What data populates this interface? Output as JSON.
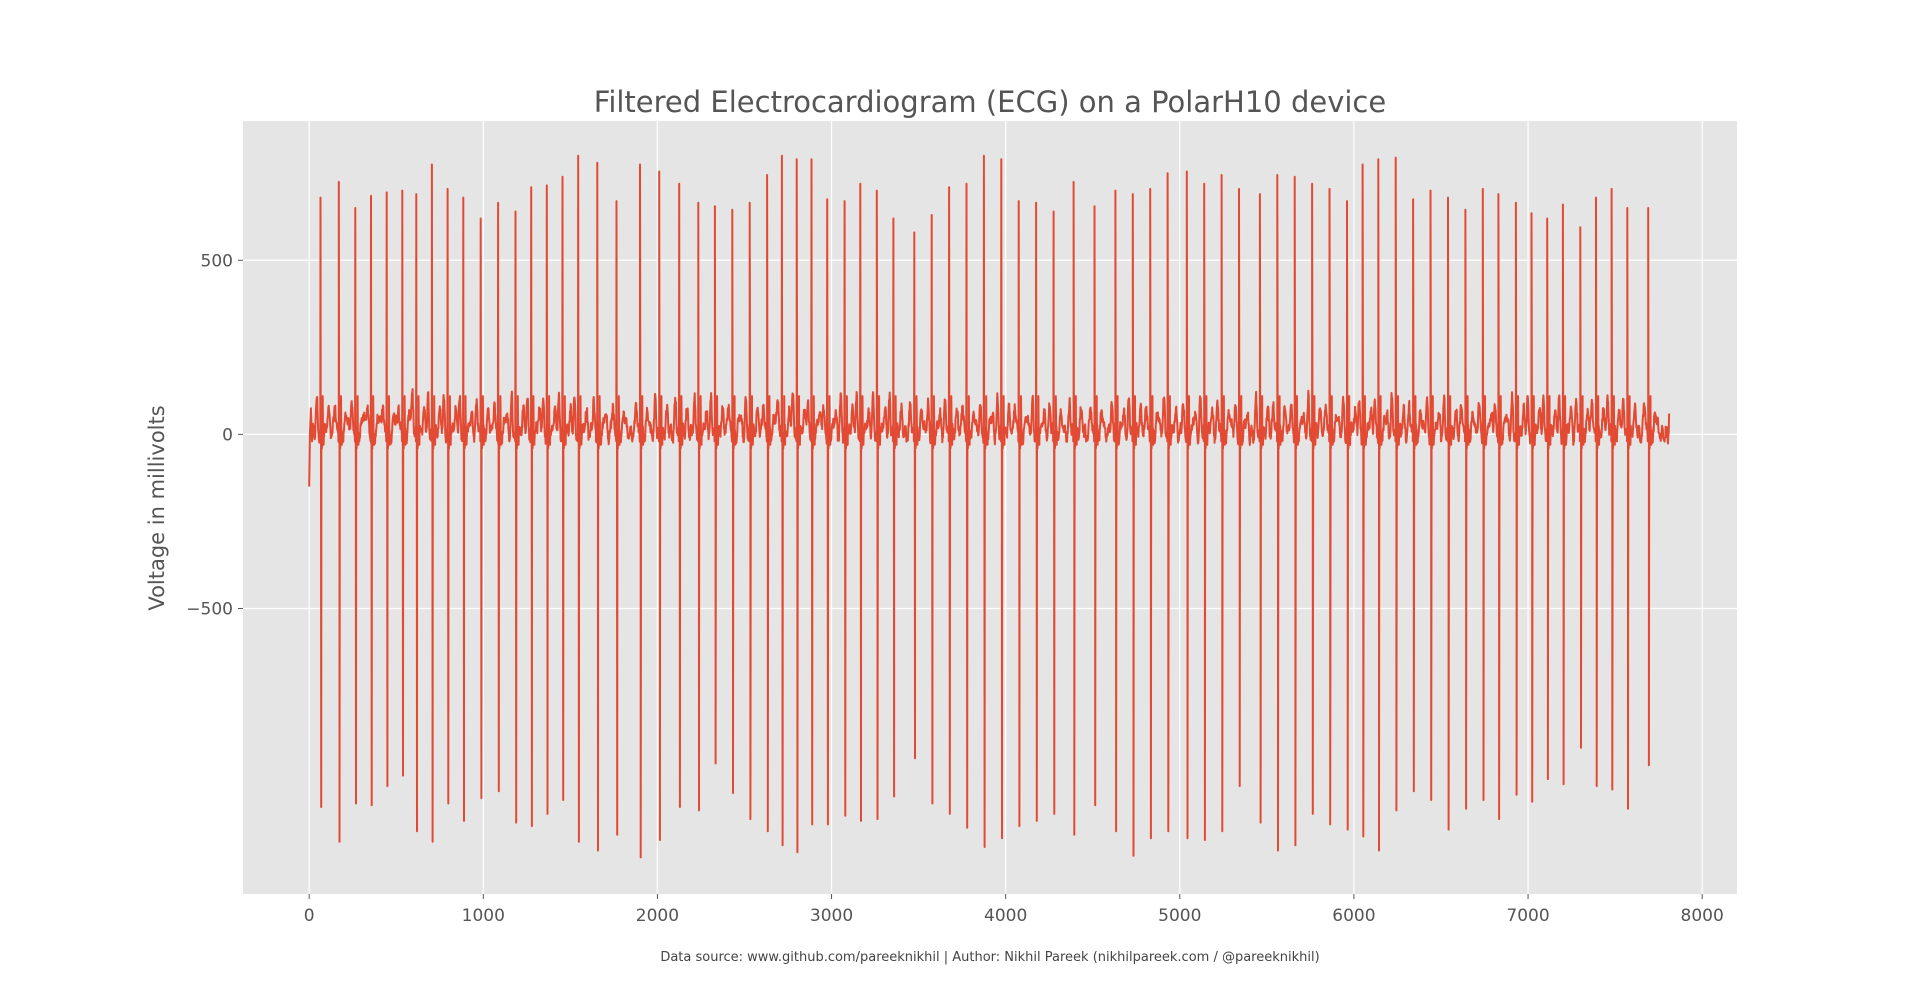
{
  "chart_data": {
    "type": "line",
    "title": "Filtered Electrocardiogram (ECG) on a PolarH10 device",
    "xlabel": "",
    "ylabel": "Voltage in millivolts",
    "caption": "Data source: www.github.com/pareeknikhil | Author: Nikhil Pareek (nikhilpareek.com / @pareeknikhil)",
    "xlim": [
      -380,
      8200
    ],
    "ylim": [
      -1320,
      900
    ],
    "x_ticks": [
      0,
      1000,
      2000,
      3000,
      4000,
      5000,
      6000,
      7000,
      8000
    ],
    "x_tick_labels": [
      "0",
      "1000",
      "2000",
      "3000",
      "4000",
      "5000",
      "6000",
      "7000",
      "8000"
    ],
    "y_ticks": [
      -500,
      0,
      500
    ],
    "y_tick_labels": [
      "−500",
      "0",
      "500"
    ],
    "grid": true,
    "sample_count": 7810,
    "beat_x": [
      65,
      170,
      265,
      355,
      445,
      535,
      615,
      705,
      795,
      885,
      985,
      1085,
      1185,
      1275,
      1365,
      1455,
      1545,
      1655,
      1765,
      1900,
      2010,
      2125,
      2235,
      2330,
      2430,
      2530,
      2630,
      2715,
      2800,
      2885,
      2975,
      3075,
      3165,
      3260,
      3355,
      3475,
      3575,
      3675,
      3775,
      3875,
      3975,
      4075,
      4175,
      4275,
      4390,
      4510,
      4630,
      4730,
      4830,
      4930,
      5040,
      5140,
      5240,
      5340,
      5460,
      5560,
      5660,
      5760,
      5860,
      5960,
      6050,
      6140,
      6240,
      6340,
      6440,
      6540,
      6640,
      6740,
      6830,
      6930,
      7020,
      7110,
      7200,
      7300,
      7390,
      7480,
      7570,
      7690
    ],
    "beat_r": [
      680,
      725,
      650,
      685,
      695,
      700,
      690,
      775,
      705,
      680,
      620,
      665,
      640,
      710,
      715,
      740,
      800,
      780,
      670,
      775,
      755,
      720,
      665,
      655,
      645,
      665,
      745,
      800,
      790,
      790,
      675,
      670,
      720,
      700,
      620,
      580,
      630,
      710,
      720,
      800,
      790,
      670,
      665,
      640,
      725,
      655,
      700,
      690,
      705,
      750,
      755,
      720,
      745,
      705,
      690,
      745,
      740,
      720,
      705,
      670,
      775,
      790,
      795,
      675,
      700,
      680,
      645,
      705,
      690,
      665,
      635,
      620,
      660,
      595,
      680,
      705,
      650,
      650
    ],
    "beat_s": [
      -1070,
      -1170,
      -1060,
      -1065,
      -1010,
      -980,
      -1140,
      -1170,
      -1060,
      -1110,
      -1045,
      -1025,
      -1115,
      -1125,
      -1090,
      -1050,
      -1170,
      -1195,
      -1150,
      -1215,
      -1165,
      -1070,
      -1080,
      -945,
      -1030,
      -1105,
      -1140,
      -1180,
      -1200,
      -1120,
      -1120,
      -1095,
      -1110,
      -1105,
      -1040,
      -930,
      -1060,
      -1090,
      -1130,
      -1185,
      -1160,
      -1125,
      -1110,
      -1090,
      -1150,
      -1065,
      -1140,
      -1210,
      -1160,
      -1140,
      -1160,
      -1165,
      -1140,
      -1010,
      -1115,
      -1195,
      -1180,
      -1090,
      -1120,
      -1135,
      -1155,
      -1195,
      -1080,
      -1025,
      -1050,
      -1135,
      -1075,
      -1050,
      -1105,
      -1035,
      -1055,
      -990,
      -1005,
      -900,
      -1010,
      -1020,
      -1075,
      -950
    ],
    "series": [
      {
        "color": "#e24a33"
      }
    ],
    "style": {
      "plot_background": "#e5e5e5",
      "grid_color": "#ffffff",
      "text_color": "#555555"
    }
  }
}
